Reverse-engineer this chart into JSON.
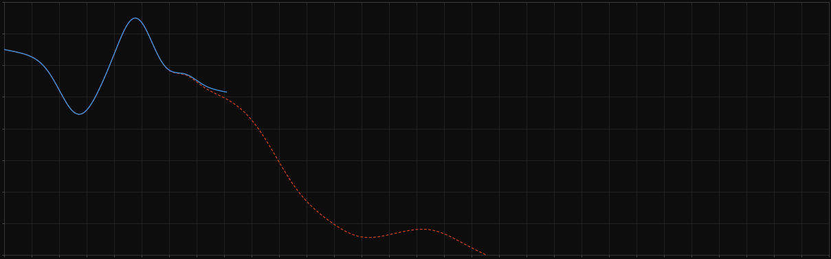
{
  "background_color": "#0d0d0d",
  "plot_bg_color": "#0d0d0d",
  "grid_color": "#2e2e2e",
  "line1_color": "#4488cc",
  "line2_color": "#cc4422",
  "tick_color": "#666666",
  "spine_color": "#444444",
  "figsize": [
    12.09,
    3.78
  ],
  "dpi": 100,
  "xlim": [
    0,
    100
  ],
  "ylim": [
    0,
    8
  ],
  "grid_x_step": 3.333,
  "grid_y_step": 1.0,
  "blue_end_x": 27
}
